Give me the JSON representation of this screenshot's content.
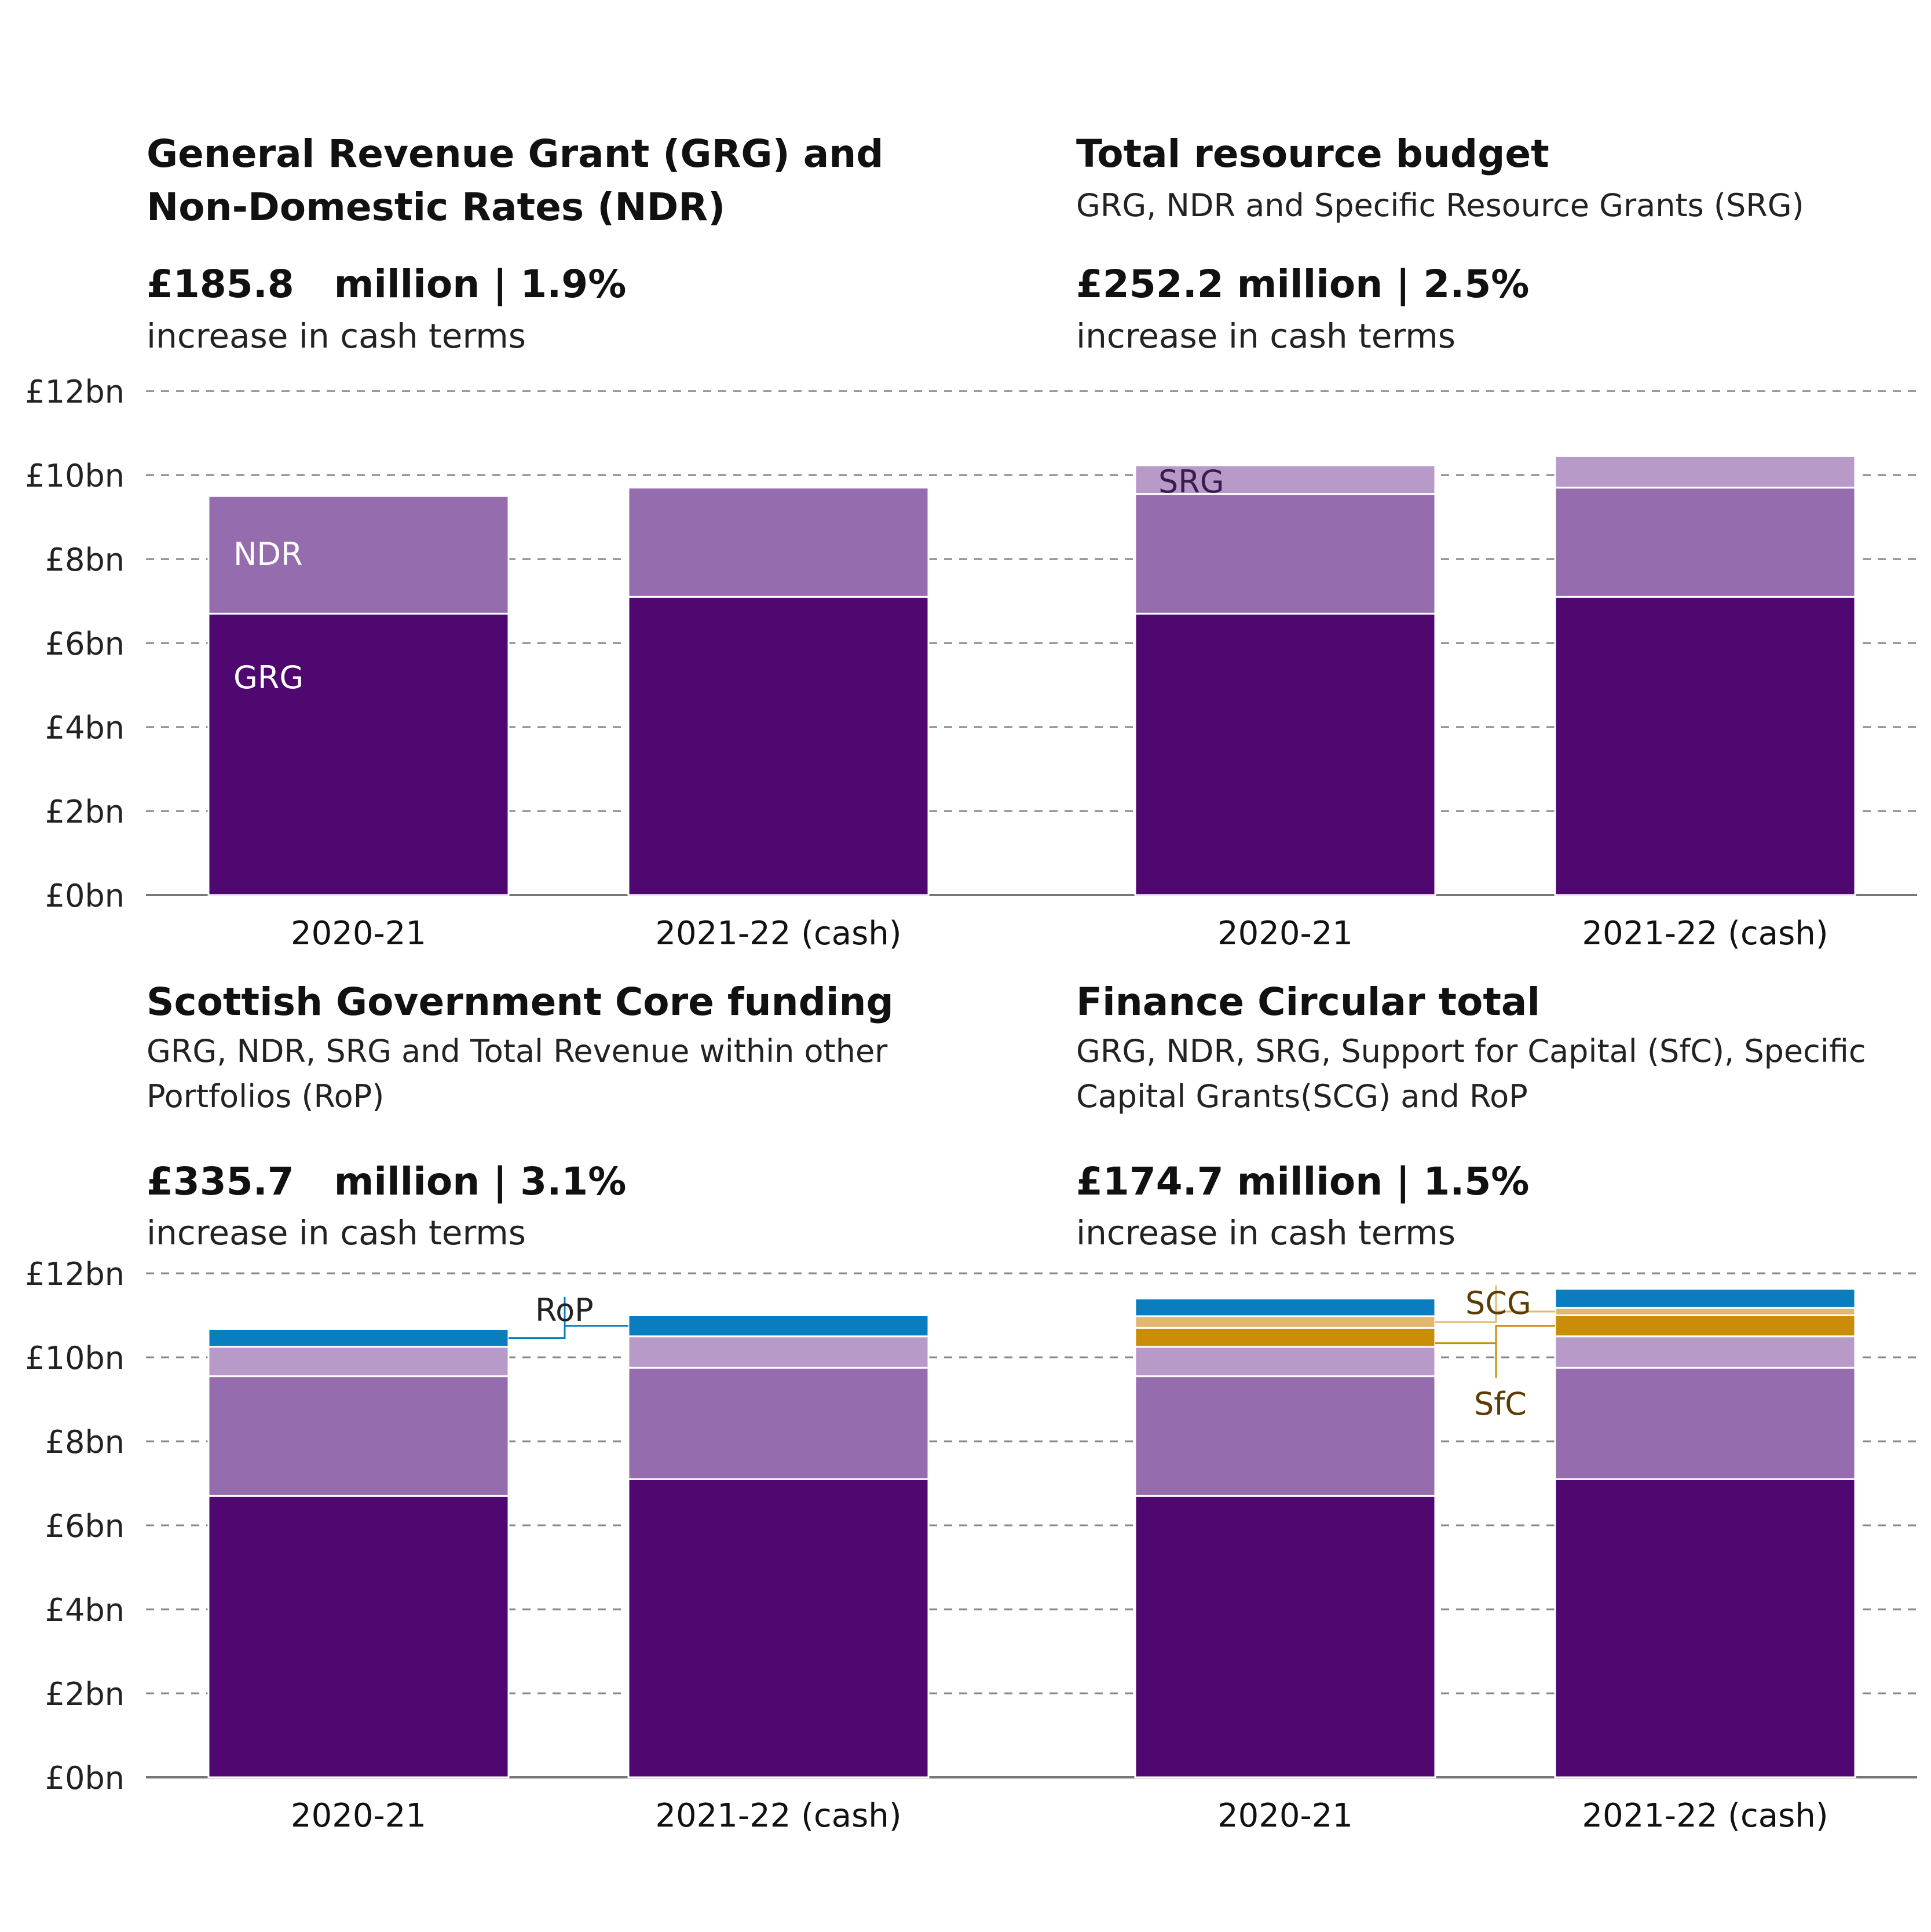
{
  "colors": {
    "GRG": "#4f0870",
    "NDR": "#956cad",
    "SRG": "#b89ac9",
    "SfC": "#c98d07",
    "SCG": "#e3b86e",
    "RoP": "#0a7dbf",
    "grid": "#888888",
    "axis": "#777777"
  },
  "panels": [
    {
      "title": "General Revenue Grant (GRG) and Non-Domestic Rates (NDR)",
      "subtitle": "",
      "stat": "£185.8   million | 1.9%",
      "stat_note": "increase in cash terms"
    },
    {
      "title": "Total resource budget",
      "subtitle": "GRG, NDR and Specific Resource Grants (SRG)",
      "stat": "£252.2 million | 2.5%",
      "stat_note": "increase in cash terms"
    },
    {
      "title": "Scottish Government Core funding",
      "subtitle": "GRG, NDR, SRG and Total Revenue within other Portfolios (RoP)",
      "stat": "£335.7   million | 3.1%",
      "stat_note": "increase in cash terms"
    },
    {
      "title": "Finance Circular total",
      "subtitle": "GRG, NDR, SRG, Support for Capital (SfC), Specific Capital Grants(SCG) and RoP",
      "stat": "£174.7 million | 1.5%",
      "stat_note": "increase in cash terms"
    }
  ],
  "chart_data": [
    {
      "type": "bar",
      "stacked": true,
      "categories": [
        "2020-21",
        "2021-22 (cash)"
      ],
      "ylim": [
        0,
        12
      ],
      "yticks": [
        "£0bn",
        "£2bn",
        "£4bn",
        "£6bn",
        "£8bn",
        "£10bn",
        "£12bn"
      ],
      "grid": true,
      "series": [
        {
          "name": "GRG",
          "values": [
            6.7,
            7.1
          ]
        },
        {
          "name": "NDR",
          "values": [
            2.8,
            2.6
          ]
        }
      ]
    },
    {
      "type": "bar",
      "stacked": true,
      "categories": [
        "2020-21",
        "2021-22 (cash)"
      ],
      "ylim": [
        0,
        12
      ],
      "grid": true,
      "series": [
        {
          "name": "GRG",
          "values": [
            6.7,
            7.1
          ]
        },
        {
          "name": "NDR",
          "values": [
            2.85,
            2.6
          ]
        },
        {
          "name": "SRG",
          "values": [
            0.68,
            0.75
          ]
        }
      ]
    },
    {
      "type": "bar",
      "stacked": true,
      "categories": [
        "2020-21",
        "2021-22 (cash)"
      ],
      "ylim": [
        0,
        12
      ],
      "yticks": [
        "£0bn",
        "£2bn",
        "£4bn",
        "£6bn",
        "£8bn",
        "£10bn",
        "£12bn"
      ],
      "grid": true,
      "series": [
        {
          "name": "GRG",
          "values": [
            6.7,
            7.1
          ]
        },
        {
          "name": "NDR",
          "values": [
            2.85,
            2.65
          ]
        },
        {
          "name": "SRG",
          "values": [
            0.7,
            0.75
          ]
        },
        {
          "name": "RoP",
          "values": [
            0.42,
            0.5
          ]
        }
      ]
    },
    {
      "type": "bar",
      "stacked": true,
      "categories": [
        "2020-21",
        "2021-22 (cash)"
      ],
      "ylim": [
        0,
        12
      ],
      "grid": true,
      "series": [
        {
          "name": "GRG",
          "values": [
            6.7,
            7.1
          ]
        },
        {
          "name": "NDR",
          "values": [
            2.85,
            2.65
          ]
        },
        {
          "name": "SRG",
          "values": [
            0.7,
            0.75
          ]
        },
        {
          "name": "SfC",
          "values": [
            0.45,
            0.5
          ]
        },
        {
          "name": "SCG",
          "values": [
            0.28,
            0.18
          ]
        },
        {
          "name": "RoP",
          "values": [
            0.42,
            0.45
          ]
        }
      ]
    }
  ],
  "inline_labels": {
    "p1_GRG": "GRG",
    "p1_NDR": "NDR",
    "p2_SRG": "SRG",
    "p3_RoP": "RoP",
    "p4_SCG": "SCG",
    "p4_SfC": "SfC"
  }
}
